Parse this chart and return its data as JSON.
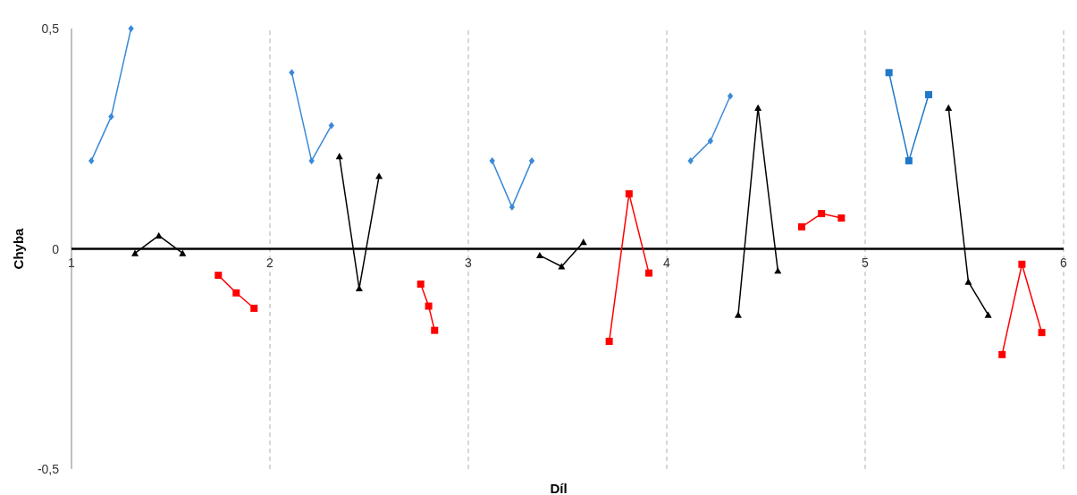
{
  "chart_data": {
    "type": "line",
    "xlabel": "Díl",
    "ylabel": "Chyba",
    "xlim": [
      1,
      6
    ],
    "ylim": [
      -0.5,
      0.5
    ],
    "xticks": [
      1,
      2,
      3,
      4,
      5,
      6
    ],
    "yticks": [
      {
        "value": -0.5,
        "label": "-0,5"
      },
      {
        "value": 0,
        "label": "0"
      },
      {
        "value": 0.5,
        "label": "0,5"
      }
    ],
    "grid": "x",
    "series": [
      {
        "color": "#3b8ad8",
        "marker": "diamond",
        "x": [
          1.1,
          1.2,
          1.3
        ],
        "values": [
          0.2,
          0.3,
          0.5
        ]
      },
      {
        "color": "#3b8ad8",
        "marker": "diamond",
        "x": [
          2.11,
          2.21,
          2.31
        ],
        "values": [
          0.4,
          0.2,
          0.28
        ]
      },
      {
        "color": "#3b8ad8",
        "marker": "diamond",
        "x": [
          3.12,
          3.22,
          3.32
        ],
        "values": [
          0.2,
          0.095,
          0.2
        ]
      },
      {
        "color": "#3b8ad8",
        "marker": "diamond",
        "x": [
          4.12,
          4.22,
          4.32
        ],
        "values": [
          0.2,
          0.245,
          0.347
        ]
      },
      {
        "color": "#1f78c8",
        "marker": "square",
        "x": [
          5.12,
          5.22,
          5.32
        ],
        "values": [
          0.4,
          0.2,
          0.35
        ]
      },
      {
        "color": "#000000",
        "marker": "triangle",
        "x": [
          1.32,
          1.44,
          1.56
        ],
        "values": [
          -0.01,
          0.03,
          -0.01
        ]
      },
      {
        "color": "#000000",
        "marker": "triangle",
        "x": [
          2.35,
          2.45,
          2.55
        ],
        "values": [
          0.21,
          -0.09,
          0.165
        ]
      },
      {
        "color": "#000000",
        "marker": "triangle",
        "x": [
          3.36,
          3.47,
          3.58
        ],
        "values": [
          -0.015,
          -0.04,
          0.015
        ]
      },
      {
        "color": "#000000",
        "marker": "triangle",
        "x": [
          4.36,
          4.46,
          4.56
        ],
        "values": [
          -0.15,
          0.32,
          -0.05
        ]
      },
      {
        "color": "#000000",
        "marker": "triangle",
        "x": [
          5.42,
          5.52,
          5.62
        ],
        "values": [
          0.32,
          -0.075,
          -0.15
        ]
      },
      {
        "color": "#ff0000",
        "marker": "square",
        "x": [
          1.74,
          1.83,
          1.92
        ],
        "values": [
          -0.06,
          -0.1,
          -0.135
        ]
      },
      {
        "color": "#ff0000",
        "marker": "square",
        "x": [
          2.76,
          2.8,
          2.83
        ],
        "values": [
          -0.08,
          -0.13,
          -0.185
        ]
      },
      {
        "color": "#ff0000",
        "marker": "square",
        "x": [
          3.71,
          3.81,
          3.91
        ],
        "values": [
          -0.21,
          0.125,
          -0.055
        ]
      },
      {
        "color": "#ff0000",
        "marker": "square",
        "x": [
          4.68,
          4.78,
          4.88
        ],
        "values": [
          0.05,
          0.08,
          0.07
        ]
      },
      {
        "color": "#ff0000",
        "marker": "square",
        "x": [
          5.69,
          5.79,
          5.89
        ],
        "values": [
          -0.24,
          -0.035,
          -0.19
        ]
      }
    ]
  }
}
